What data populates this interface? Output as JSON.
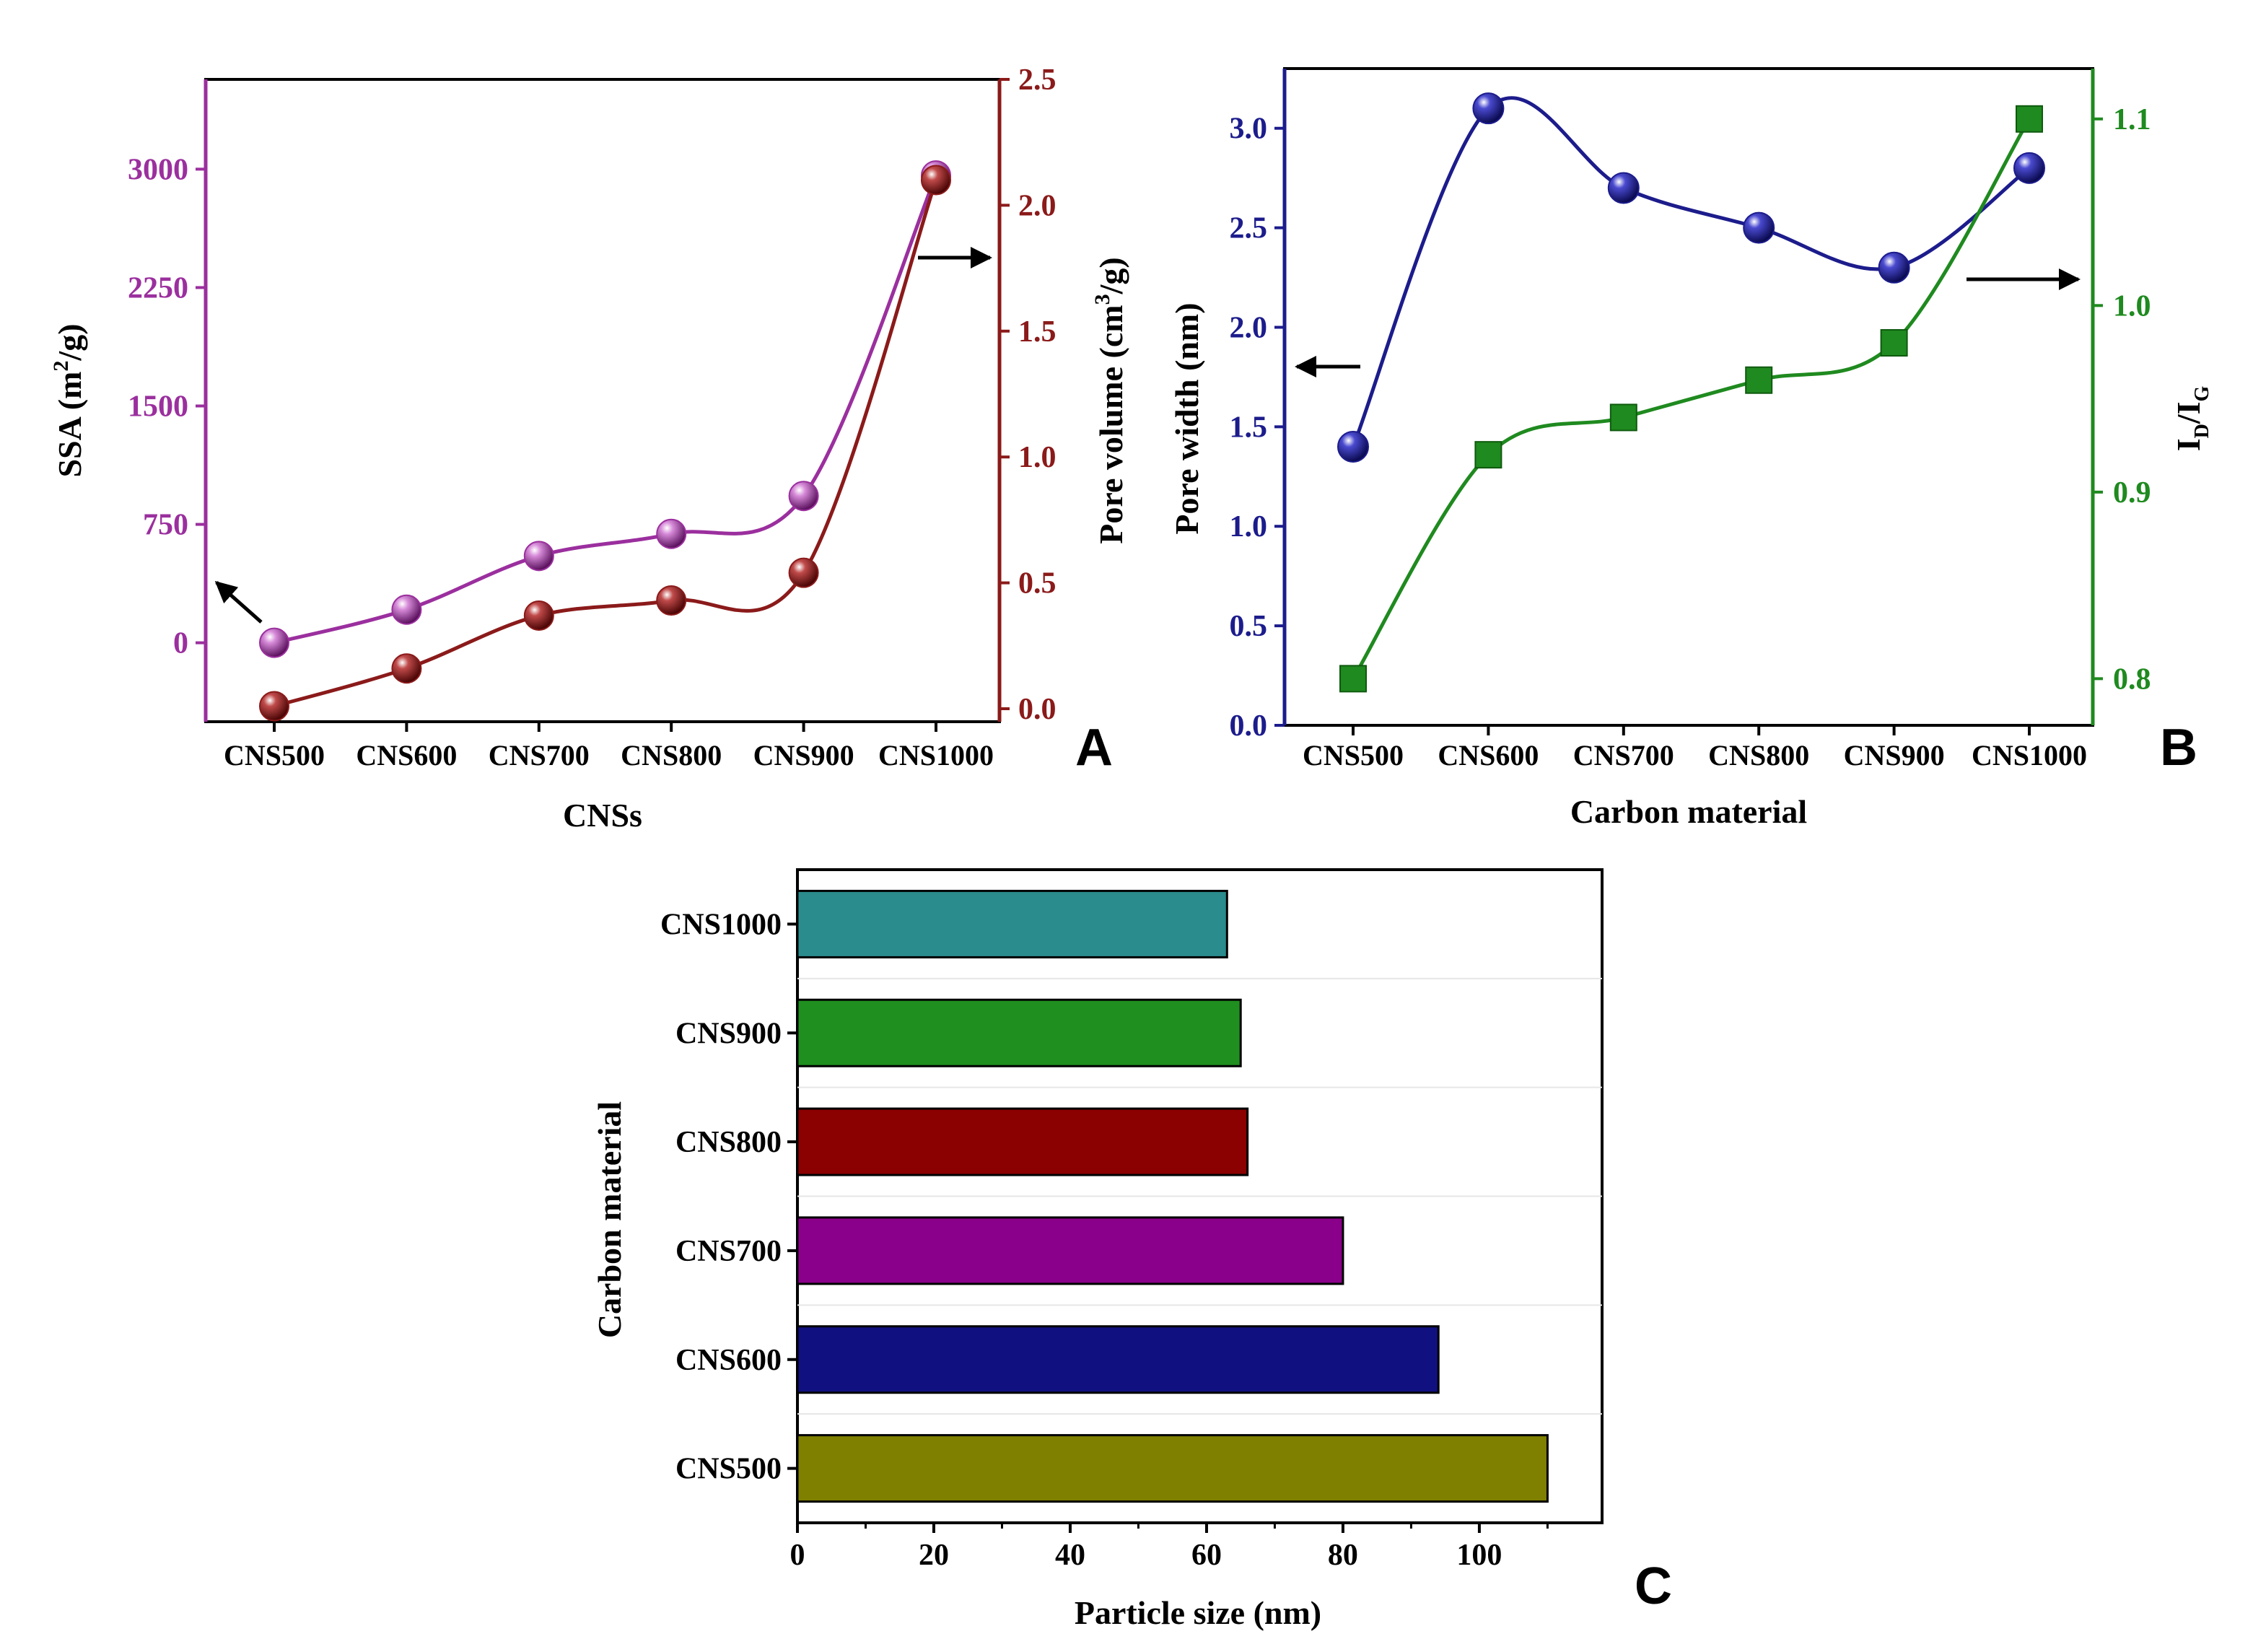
{
  "figure": {
    "panel_letters": [
      "A",
      "B",
      "C"
    ]
  },
  "chart_data": [
    {
      "panel": "A",
      "type": "line",
      "xlabel": "CNSs",
      "categories": [
        "CNS500",
        "CNS600",
        "CNS700",
        "CNS800",
        "CNS900",
        "CNS1000"
      ],
      "y_left": {
        "label_main": "SSA (m",
        "label_sup": "2",
        "label_tail": "/g)",
        "range": [
          -500,
          3500
        ],
        "ticks": [
          "0",
          "750",
          "1500",
          "2250",
          "3000"
        ],
        "color": "#9b2f9e"
      },
      "y_right": {
        "label_main": "Pore volume (cm",
        "label_sup": "3",
        "label_tail": "/g)",
        "range": [
          0,
          2.5
        ],
        "ticks": [
          "0.0",
          "0.5",
          "1.0",
          "1.5",
          "2.0",
          "2.5"
        ],
        "color": "#8b1a1a"
      },
      "series": [
        {
          "name": "SSA",
          "axis": "left",
          "color": "#9b2f9e",
          "values": [
            0,
            210,
            550,
            690,
            930,
            2960
          ]
        },
        {
          "name": "Pore volume",
          "axis": "right",
          "color": "#8b1a1a",
          "values": [
            0.01,
            0.16,
            0.37,
            0.43,
            0.54,
            2.1
          ]
        }
      ]
    },
    {
      "panel": "B",
      "type": "line",
      "xlabel": "Carbon material",
      "categories": [
        "CNS500",
        "CNS600",
        "CNS700",
        "CNS800",
        "CNS900",
        "CNS1000"
      ],
      "y_left": {
        "label": "Pore width (nm)",
        "range": [
          0,
          3.3
        ],
        "ticks": [
          "0.0",
          "0.5",
          "1.0",
          "1.5",
          "2.0",
          "2.5",
          "3.0"
        ],
        "color": "#1c1c8c"
      },
      "y_right": {
        "label_i1": "I",
        "label_sub1": "D",
        "label_slash": "/I",
        "label_sub2": "G",
        "range": [
          0.775,
          1.127
        ],
        "ticks": [
          "0.8",
          "0.9",
          "1.0",
          "1.1"
        ],
        "color": "#1f8a1f"
      },
      "series": [
        {
          "name": "Pore width",
          "axis": "left",
          "color": "#1c1c8c",
          "marker": "sphere",
          "values": [
            1.4,
            3.1,
            2.7,
            2.5,
            2.3,
            2.8
          ]
        },
        {
          "name": "ID/IG",
          "axis": "right",
          "color": "#1f8a1f",
          "marker": "square",
          "values": [
            0.8,
            0.92,
            0.94,
            0.96,
            0.98,
            1.1
          ]
        }
      ]
    },
    {
      "panel": "C",
      "type": "bar",
      "orientation": "horizontal",
      "xlabel": "Particle size (nm)",
      "ylabel": "Carbon material",
      "xlim": [
        0,
        118
      ],
      "xticks": [
        "0",
        "20",
        "40",
        "60",
        "80",
        "100"
      ],
      "categories": [
        "CNS1000",
        "CNS900",
        "CNS800",
        "CNS700",
        "CNS600",
        "CNS500"
      ],
      "values": [
        63,
        65,
        66,
        80,
        94,
        110
      ],
      "colors": [
        "#2a8c8c",
        "#1f8f1f",
        "#8b0000",
        "#8b008b",
        "#101080",
        "#808000"
      ]
    }
  ]
}
